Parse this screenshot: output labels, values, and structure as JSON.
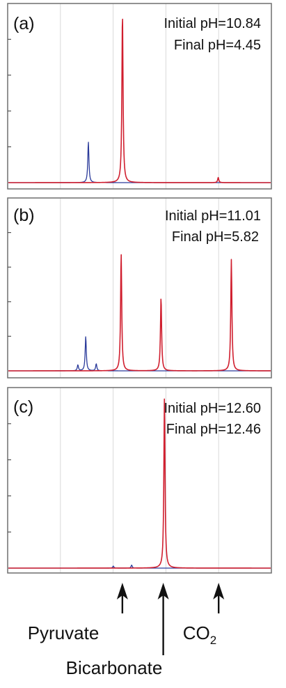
{
  "chart_data": [
    {
      "type": "line",
      "panel_label": "(a)",
      "annotations": [
        "Initial pH=10.84",
        "Final pH=4.45"
      ],
      "series": [
        {
          "color": "#2a3a9a",
          "peaks": [
            {
              "x": 0.305,
              "y": 0.24
            }
          ]
        },
        {
          "color": "#d01e2e",
          "peaks": [
            {
              "x": 0.435,
              "y": 1.0
            },
            {
              "x": 0.8,
              "y": 0.03
            }
          ]
        }
      ]
    },
    {
      "type": "line",
      "panel_label": "(b)",
      "annotations": [
        "Initial pH=11.01",
        "Final pH=5.82"
      ],
      "series": [
        {
          "color": "#2a3a9a",
          "peaks": [
            {
              "x": 0.265,
              "y": 0.05
            },
            {
              "x": 0.295,
              "y": 0.29
            },
            {
              "x": 0.335,
              "y": 0.06
            }
          ]
        },
        {
          "color": "#d01e2e",
          "peaks": [
            {
              "x": 0.43,
              "y": 0.99
            },
            {
              "x": 0.582,
              "y": 0.62
            },
            {
              "x": 0.85,
              "y": 0.94
            }
          ]
        }
      ]
    },
    {
      "type": "line",
      "panel_label": "(c)",
      "annotations": [
        "Initial pH=12.60",
        "Final pH=12.46"
      ],
      "series": [
        {
          "color": "#2a3a9a",
          "peaks": [
            {
              "x": 0.4,
              "y": 0.012
            },
            {
              "x": 0.47,
              "y": 0.018
            }
          ]
        },
        {
          "color": "#d01e2e",
          "peaks": [
            {
              "x": 0.595,
              "y": 1.0
            }
          ]
        }
      ]
    }
  ],
  "x_markers": [
    {
      "label": "Pyruvate",
      "x": 0.435
    },
    {
      "label": "Bicarbonate",
      "x": 0.59
    },
    {
      "label": "CO",
      "subscript": "2",
      "x": 0.8
    }
  ]
}
